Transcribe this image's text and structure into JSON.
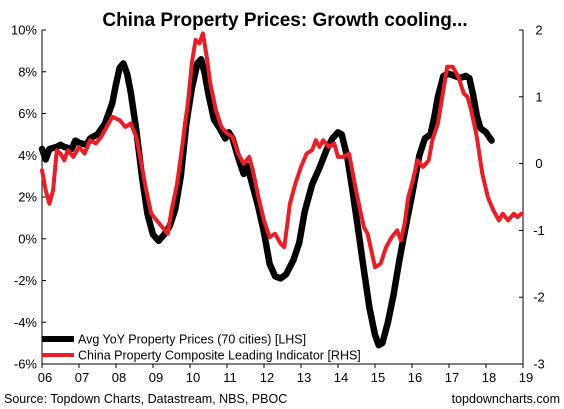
{
  "chart_data": {
    "type": "line",
    "title": "China Property Prices: Growth cooling...",
    "x_tick_labels": [
      "06",
      "07",
      "08",
      "09",
      "10",
      "11",
      "12",
      "13",
      "14",
      "15",
      "16",
      "17",
      "18",
      "19"
    ],
    "x_range": [
      2006,
      2019
    ],
    "y_left": {
      "range": [
        -6,
        10
      ],
      "ticks": [
        -6,
        -4,
        -2,
        0,
        2,
        4,
        6,
        8,
        10
      ],
      "tick_labels": [
        "-6%",
        "-4%",
        "-2%",
        "0%",
        "2%",
        "4%",
        "6%",
        "8%",
        "10%"
      ]
    },
    "y_right": {
      "range": [
        -3,
        2
      ],
      "ticks": [
        -3,
        -2,
        -1,
        0,
        1,
        2
      ],
      "tick_labels": [
        "-3",
        "-2",
        "-1",
        "0",
        "1",
        "2"
      ]
    },
    "legend_position": "bottom-left",
    "grid": false,
    "series": [
      {
        "name": "Avg YoY Property Prices (70 cities) [LHS]",
        "axis": "left",
        "color": "#000000",
        "points": [
          [
            2006.0,
            4.3
          ],
          [
            2006.1,
            3.8
          ],
          [
            2006.2,
            4.3
          ],
          [
            2006.4,
            4.4
          ],
          [
            2006.5,
            4.5
          ],
          [
            2006.6,
            4.4
          ],
          [
            2006.8,
            4.3
          ],
          [
            2006.9,
            4.7
          ],
          [
            2007.0,
            4.6
          ],
          [
            2007.2,
            4.5
          ],
          [
            2007.3,
            4.8
          ],
          [
            2007.5,
            5.0
          ],
          [
            2007.7,
            5.5
          ],
          [
            2007.8,
            6.0
          ],
          [
            2007.9,
            6.5
          ],
          [
            2008.0,
            7.4
          ],
          [
            2008.1,
            8.2
          ],
          [
            2008.2,
            8.4
          ],
          [
            2008.3,
            7.9
          ],
          [
            2008.4,
            7.0
          ],
          [
            2008.55,
            5.2
          ],
          [
            2008.7,
            3.0
          ],
          [
            2008.85,
            1.2
          ],
          [
            2009.0,
            0.2
          ],
          [
            2009.15,
            -0.1
          ],
          [
            2009.3,
            0.2
          ],
          [
            2009.45,
            0.6
          ],
          [
            2009.6,
            1.4
          ],
          [
            2009.75,
            3.0
          ],
          [
            2009.9,
            5.5
          ],
          [
            2010.05,
            7.2
          ],
          [
            2010.2,
            8.4
          ],
          [
            2010.3,
            8.6
          ],
          [
            2010.4,
            7.9
          ],
          [
            2010.5,
            6.9
          ],
          [
            2010.65,
            5.7
          ],
          [
            2010.8,
            5.3
          ],
          [
            2010.95,
            4.8
          ],
          [
            2011.05,
            5.1
          ],
          [
            2011.15,
            4.8
          ],
          [
            2011.3,
            3.9
          ],
          [
            2011.45,
            3.1
          ],
          [
            2011.55,
            3.5
          ],
          [
            2011.7,
            2.5
          ],
          [
            2011.85,
            1.5
          ],
          [
            2012.0,
            0.3
          ],
          [
            2012.15,
            -1.2
          ],
          [
            2012.3,
            -1.8
          ],
          [
            2012.45,
            -1.9
          ],
          [
            2012.6,
            -1.7
          ],
          [
            2012.8,
            -1.0
          ],
          [
            2012.95,
            -0.2
          ],
          [
            2013.1,
            1.3
          ],
          [
            2013.3,
            2.6
          ],
          [
            2013.5,
            3.4
          ],
          [
            2013.7,
            4.3
          ],
          [
            2013.85,
            4.8
          ],
          [
            2014.0,
            5.1
          ],
          [
            2014.1,
            5.0
          ],
          [
            2014.25,
            3.9
          ],
          [
            2014.4,
            2.2
          ],
          [
            2014.55,
            0.4
          ],
          [
            2014.7,
            -1.5
          ],
          [
            2014.85,
            -3.3
          ],
          [
            2015.0,
            -4.6
          ],
          [
            2015.1,
            -5.1
          ],
          [
            2015.2,
            -5.0
          ],
          [
            2015.35,
            -4.0
          ],
          [
            2015.5,
            -2.7
          ],
          [
            2015.65,
            -1.1
          ],
          [
            2015.8,
            0.3
          ],
          [
            2016.0,
            2.1
          ],
          [
            2016.2,
            4.0
          ],
          [
            2016.35,
            4.8
          ],
          [
            2016.5,
            5.0
          ],
          [
            2016.6,
            5.8
          ],
          [
            2016.7,
            6.8
          ],
          [
            2016.85,
            7.8
          ],
          [
            2017.0,
            7.9
          ],
          [
            2017.15,
            7.8
          ],
          [
            2017.3,
            7.7
          ],
          [
            2017.45,
            7.8
          ],
          [
            2017.55,
            7.7
          ],
          [
            2017.65,
            6.9
          ],
          [
            2017.75,
            5.9
          ],
          [
            2017.85,
            5.3
          ],
          [
            2018.0,
            5.1
          ],
          [
            2018.15,
            4.7
          ]
        ]
      },
      {
        "name": "China Property Composite Leading Indicator [RHS]",
        "axis": "right",
        "color": "#ee1c25",
        "points": [
          [
            2006.0,
            -0.1
          ],
          [
            2006.1,
            -0.4
          ],
          [
            2006.2,
            -0.6
          ],
          [
            2006.3,
            -0.4
          ],
          [
            2006.4,
            0.2
          ],
          [
            2006.5,
            0.15
          ],
          [
            2006.6,
            0.05
          ],
          [
            2006.7,
            0.2
          ],
          [
            2006.85,
            0.1
          ],
          [
            2007.0,
            0.25
          ],
          [
            2007.15,
            0.15
          ],
          [
            2007.3,
            0.35
          ],
          [
            2007.45,
            0.3
          ],
          [
            2007.6,
            0.4
          ],
          [
            2007.8,
            0.6
          ],
          [
            2007.9,
            0.7
          ],
          [
            2008.1,
            0.65
          ],
          [
            2008.25,
            0.55
          ],
          [
            2008.4,
            0.6
          ],
          [
            2008.55,
            0.4
          ],
          [
            2008.65,
            0.1
          ],
          [
            2008.8,
            -0.35
          ],
          [
            2008.95,
            -0.75
          ],
          [
            2009.1,
            -0.85
          ],
          [
            2009.25,
            -0.95
          ],
          [
            2009.4,
            -1.05
          ],
          [
            2009.5,
            -0.7
          ],
          [
            2009.65,
            -0.3
          ],
          [
            2009.8,
            0.3
          ],
          [
            2009.95,
            0.95
          ],
          [
            2010.05,
            1.5
          ],
          [
            2010.15,
            1.85
          ],
          [
            2010.25,
            1.8
          ],
          [
            2010.35,
            1.95
          ],
          [
            2010.45,
            1.6
          ],
          [
            2010.55,
            1.2
          ],
          [
            2010.7,
            0.8
          ],
          [
            2010.85,
            0.55
          ],
          [
            2011.0,
            0.45
          ],
          [
            2011.15,
            0.4
          ],
          [
            2011.3,
            0.15
          ],
          [
            2011.45,
            0.0
          ],
          [
            2011.6,
            0.1
          ],
          [
            2011.7,
            -0.1
          ],
          [
            2011.85,
            -0.5
          ],
          [
            2012.0,
            -0.85
          ],
          [
            2012.15,
            -1.1
          ],
          [
            2012.3,
            -1.05
          ],
          [
            2012.45,
            -1.2
          ],
          [
            2012.55,
            -1.25
          ],
          [
            2012.7,
            -0.6
          ],
          [
            2012.85,
            -0.3
          ],
          [
            2013.0,
            -0.05
          ],
          [
            2013.15,
            0.15
          ],
          [
            2013.3,
            0.2
          ],
          [
            2013.4,
            0.35
          ],
          [
            2013.5,
            0.25
          ],
          [
            2013.6,
            0.35
          ],
          [
            2013.75,
            0.25
          ],
          [
            2013.9,
            0.3
          ],
          [
            2014.0,
            0.1
          ],
          [
            2014.15,
            0.1
          ],
          [
            2014.3,
            0.15
          ],
          [
            2014.45,
            -0.3
          ],
          [
            2014.6,
            -0.7
          ],
          [
            2014.7,
            -0.95
          ],
          [
            2014.8,
            -1.05
          ],
          [
            2014.9,
            -1.3
          ],
          [
            2015.0,
            -1.55
          ],
          [
            2015.15,
            -1.5
          ],
          [
            2015.3,
            -1.25
          ],
          [
            2015.45,
            -1.1
          ],
          [
            2015.6,
            -1.0
          ],
          [
            2015.7,
            -1.15
          ],
          [
            2015.8,
            -0.9
          ],
          [
            2015.9,
            -0.5
          ],
          [
            2016.0,
            -0.3
          ],
          [
            2016.15,
            0.05
          ],
          [
            2016.3,
            -0.05
          ],
          [
            2016.45,
            0.05
          ],
          [
            2016.55,
            0.35
          ],
          [
            2016.7,
            0.6
          ],
          [
            2016.85,
            1.1
          ],
          [
            2016.95,
            1.45
          ],
          [
            2017.1,
            1.45
          ],
          [
            2017.25,
            1.3
          ],
          [
            2017.4,
            1.05
          ],
          [
            2017.5,
            1.0
          ],
          [
            2017.6,
            0.8
          ],
          [
            2017.75,
            0.4
          ],
          [
            2017.9,
            -0.15
          ],
          [
            2018.05,
            -0.5
          ],
          [
            2018.2,
            -0.7
          ],
          [
            2018.35,
            -0.85
          ],
          [
            2018.45,
            -0.75
          ],
          [
            2018.6,
            -0.85
          ],
          [
            2018.75,
            -0.75
          ],
          [
            2018.85,
            -0.8
          ],
          [
            2018.95,
            -0.75
          ]
        ]
      }
    ],
    "footer_source": "Source: Topdown Charts, Datastream, NBS, PBOC",
    "footer_brand": "topdowncharts.com"
  }
}
